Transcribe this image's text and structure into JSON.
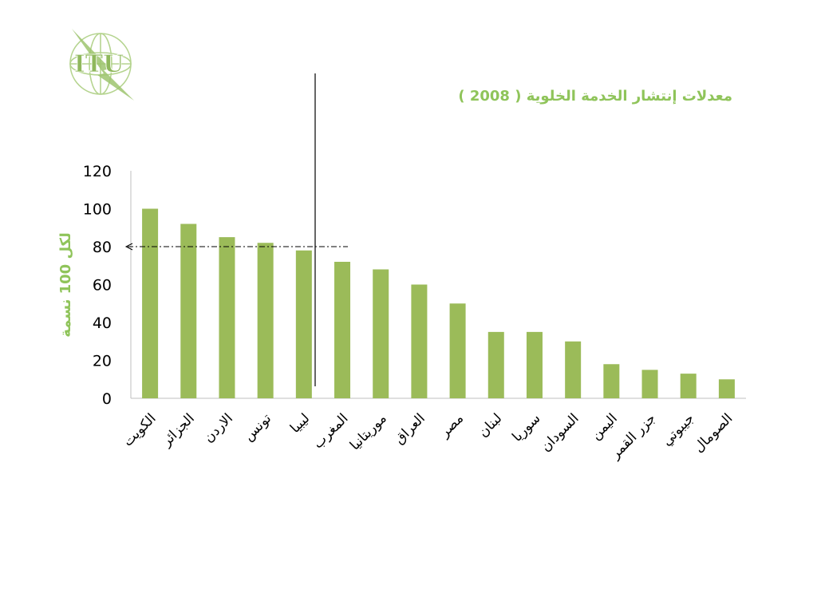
{
  "chart_data": {
    "type": "bar",
    "title": "معدلات إنتشار الخدمة الخلوية ( 2008 )",
    "ylabel": "لكل 100 نسمة",
    "xlabel": "",
    "ylim": [
      0,
      120
    ],
    "yticks": [
      0,
      20,
      40,
      60,
      80,
      100,
      120
    ],
    "categories": [
      "الكويت",
      "الجزائر",
      "الاردن",
      "تونس",
      "ليبيا",
      "المغرب",
      "موريتانيا",
      "العراق",
      "مصر",
      "لبنان",
      "سوريا",
      "السودان",
      "اليمن",
      "جزر القمر",
      "جيبوتي",
      "الصومال"
    ],
    "values": [
      100,
      92,
      85,
      82,
      78,
      72,
      68,
      60,
      50,
      35,
      35,
      30,
      18,
      15,
      13,
      10
    ],
    "reference_line": {
      "value": 80
    },
    "bar_color": "#9bbb59",
    "grid": false,
    "legend": "none"
  },
  "colors": {
    "title": "#8fc45a",
    "ylabel": "#8fc45a",
    "logo": "#9ec46e"
  },
  "logo": {
    "text": "ITU",
    "icon": "itu-logo-icon"
  }
}
